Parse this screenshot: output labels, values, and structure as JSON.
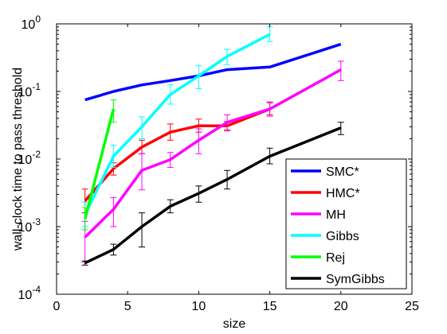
{
  "chart_data": {
    "type": "line",
    "title": "",
    "xlabel": "size",
    "ylabel": "wall-clock time to pass threshold",
    "xlim": [
      0,
      25
    ],
    "ylim": [
      0.0001,
      1
    ],
    "yscale": "log",
    "grid": false,
    "legend_position": "bottom-right",
    "xticks": [
      0,
      5,
      10,
      15,
      20,
      25
    ],
    "xtick_labels": [
      "0",
      "5",
      "10",
      "15",
      "20",
      "25"
    ],
    "yticks": [
      0.0001,
      0.001,
      0.01,
      0.1,
      1
    ],
    "ytick_labels": [
      {
        "base": "10",
        "exp": "-4"
      },
      {
        "base": "10",
        "exp": "-3"
      },
      {
        "base": "10",
        "exp": "-2"
      },
      {
        "base": "10",
        "exp": "-1"
      },
      {
        "base": "10",
        "exp": "0"
      }
    ],
    "series": [
      {
        "name": "SMC*",
        "color": "#0000ff",
        "x": [
          2,
          4,
          6,
          8,
          10,
          12,
          15,
          20
        ],
        "y": [
          0.075,
          0.1,
          0.125,
          0.145,
          0.17,
          0.21,
          0.23,
          0.5
        ],
        "err_low": [],
        "err_high": []
      },
      {
        "name": "HMC*",
        "color": "#ff0000",
        "x": [
          2,
          4,
          6,
          8,
          10,
          12,
          15
        ],
        "y": [
          0.0024,
          0.0072,
          0.015,
          0.025,
          0.031,
          0.031,
          0.055
        ],
        "err_low": [
          0.0016,
          0.0058,
          0.012,
          0.019,
          0.025,
          0.027,
          0.045
        ],
        "err_high": [
          0.0036,
          0.0088,
          0.019,
          0.033,
          0.039,
          0.036,
          0.068
        ]
      },
      {
        "name": "MH",
        "color": "#ff00ff",
        "x": [
          2,
          4,
          6,
          8,
          10,
          12,
          15,
          20
        ],
        "y": [
          0.0007,
          0.0018,
          0.0068,
          0.0098,
          0.019,
          0.035,
          0.055,
          0.21
        ],
        "err_low": [
          0.0003,
          0.001,
          0.0035,
          0.0075,
          0.012,
          0.026,
          0.043,
          0.145
        ],
        "err_high": [
          0.0012,
          0.0027,
          0.012,
          0.0125,
          0.028,
          0.045,
          0.07,
          0.28
        ]
      },
      {
        "name": "Gibbs",
        "color": "#00ffff",
        "x": [
          2,
          4,
          6,
          8,
          10,
          12,
          15
        ],
        "y": [
          0.0015,
          0.011,
          0.03,
          0.09,
          0.17,
          0.33,
          0.7
        ],
        "err_low": [
          0.001,
          0.0075,
          0.02,
          0.065,
          0.11,
          0.25,
          0.55
        ],
        "err_high": [
          0.0023,
          0.016,
          0.042,
          0.125,
          0.24,
          0.42,
          0.9
        ]
      },
      {
        "name": "Rej",
        "color": "#00ff00",
        "x": [
          2,
          4
        ],
        "y": [
          0.0013,
          0.055
        ],
        "err_low": [
          0.0009,
          0.035
        ],
        "err_high": [
          0.0019,
          0.075
        ]
      },
      {
        "name": "SymGibbs",
        "color": "#000000",
        "x": [
          2,
          4,
          6,
          8,
          10,
          12,
          15,
          20
        ],
        "y": [
          0.00029,
          0.00046,
          0.001,
          0.002,
          0.0031,
          0.005,
          0.011,
          0.029
        ],
        "err_low": [
          0.00027,
          0.00038,
          0.0005,
          0.0016,
          0.0023,
          0.0036,
          0.0085,
          0.023
        ],
        "err_high": [
          0.00031,
          0.00055,
          0.0016,
          0.0025,
          0.004,
          0.0068,
          0.0145,
          0.035
        ]
      }
    ]
  }
}
